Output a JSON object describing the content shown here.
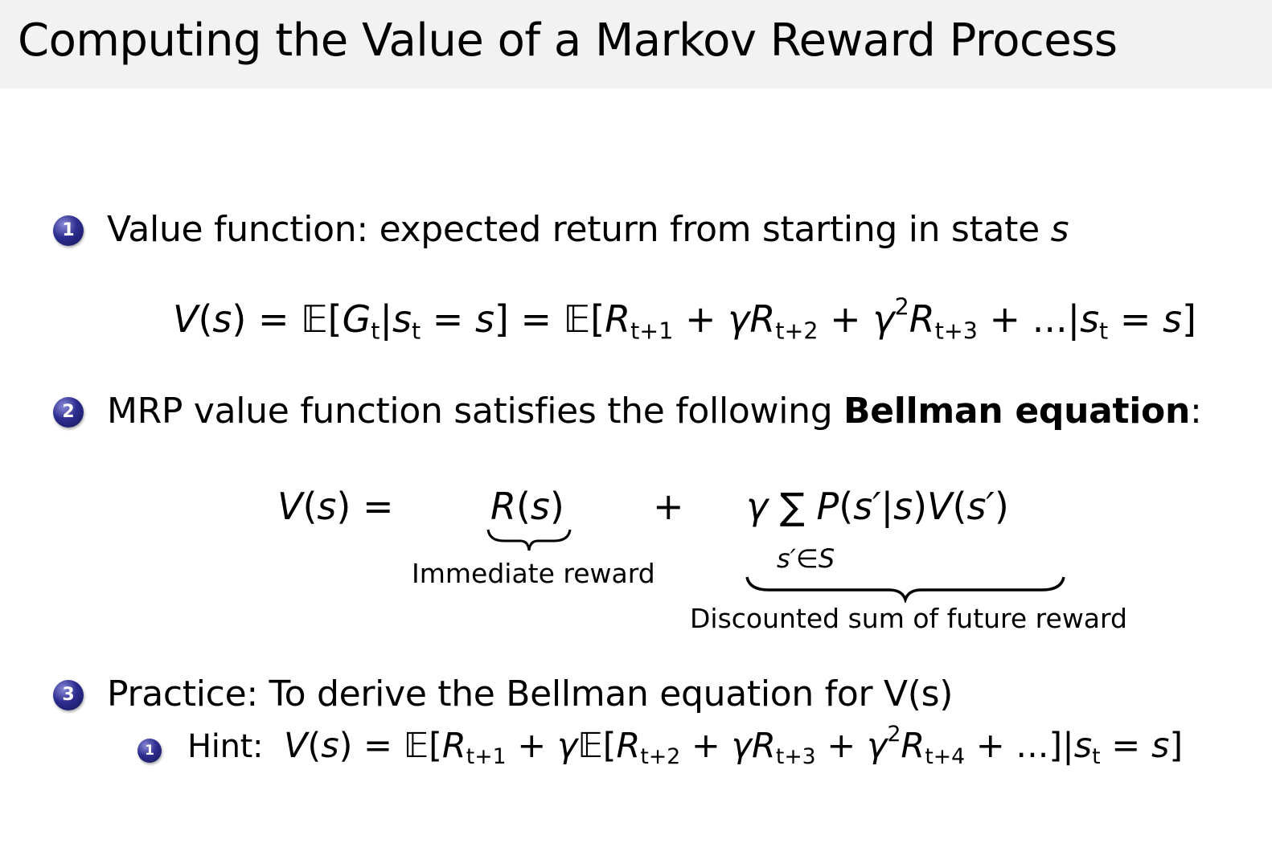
{
  "title": "Computing the Value of a Markov Reward Process",
  "accent_color": "#2d2d8f",
  "items": [
    {
      "number": "1",
      "text_parts": [
        "Value function: expected return from starting in state ",
        "s"
      ]
    },
    {
      "number": "2",
      "text_before": "MRP value function satisfies the following ",
      "text_bold": "Bellman equation",
      "text_after": ":"
    },
    {
      "number": "3",
      "text": "Practice: To derive the Bellman equation for V(s)",
      "sub_item": {
        "number": "1",
        "label": "Hint:"
      }
    }
  ],
  "equations": {
    "value_def": [
      [
        "i",
        "V"
      ],
      [
        "r",
        "("
      ],
      [
        "i",
        "s"
      ],
      [
        "r",
        ") = 𝔼["
      ],
      [
        "i",
        "G"
      ],
      [
        "sub",
        "t"
      ],
      [
        "r",
        "|"
      ],
      [
        "i",
        "s"
      ],
      [
        "sub",
        "t"
      ],
      [
        "r",
        " = "
      ],
      [
        "i",
        "s"
      ],
      [
        "r",
        "] = 𝔼["
      ],
      [
        "i",
        "R"
      ],
      [
        "sub",
        "t+1"
      ],
      [
        "r",
        " + "
      ],
      [
        "i",
        "γR"
      ],
      [
        "sub",
        "t+2"
      ],
      [
        "r",
        " + "
      ],
      [
        "i",
        "γ"
      ],
      [
        "sup",
        "2"
      ],
      [
        "i",
        "R"
      ],
      [
        "sub",
        "t+3"
      ],
      [
        "r",
        " + ...|"
      ],
      [
        "i",
        "s"
      ],
      [
        "sub",
        "t"
      ],
      [
        "r",
        " = "
      ],
      [
        "i",
        "s"
      ],
      [
        "r",
        "]"
      ]
    ],
    "bellman_lhs": [
      [
        "i",
        "V"
      ],
      [
        "r",
        "("
      ],
      [
        "i",
        "s"
      ],
      [
        "r",
        ") ="
      ]
    ],
    "bellman_reward": [
      [
        "i",
        "R"
      ],
      [
        "r",
        "("
      ],
      [
        "i",
        "s"
      ],
      [
        "r",
        ")"
      ]
    ],
    "bellman_plus": [
      [
        "r",
        "+"
      ]
    ],
    "bellman_future": [
      [
        "i",
        "γ"
      ],
      [
        "r",
        " ∑ "
      ],
      [
        "i",
        "P"
      ],
      [
        "r",
        "("
      ],
      [
        "i",
        "s′"
      ],
      [
        "r",
        "|"
      ],
      [
        "i",
        "s"
      ],
      [
        "r",
        ")"
      ],
      [
        "i",
        "V"
      ],
      [
        "r",
        "("
      ],
      [
        "i",
        "s′"
      ],
      [
        "r",
        ")"
      ]
    ],
    "sum_index": [
      [
        "i",
        "s′"
      ],
      [
        "r",
        "∈"
      ],
      [
        "i",
        "S"
      ]
    ],
    "hint": [
      [
        "i",
        "V"
      ],
      [
        "r",
        "("
      ],
      [
        "i",
        "s"
      ],
      [
        "r",
        ") = 𝔼["
      ],
      [
        "i",
        "R"
      ],
      [
        "sub",
        "t+1"
      ],
      [
        "r",
        " + "
      ],
      [
        "i",
        "γ"
      ],
      [
        "r",
        "𝔼["
      ],
      [
        "i",
        "R"
      ],
      [
        "sub",
        "t+2"
      ],
      [
        "r",
        " + "
      ],
      [
        "i",
        "γR"
      ],
      [
        "sub",
        "t+3"
      ],
      [
        "r",
        " + "
      ],
      [
        "i",
        "γ"
      ],
      [
        "sup",
        "2"
      ],
      [
        "i",
        "R"
      ],
      [
        "sub",
        "t+4"
      ],
      [
        "r",
        " + ...]|"
      ],
      [
        "i",
        "s"
      ],
      [
        "sub",
        "t"
      ],
      [
        "r",
        " = "
      ],
      [
        "i",
        "s"
      ],
      [
        "r",
        "]"
      ]
    ]
  },
  "labels": {
    "immediate_reward": "Immediate reward",
    "discounted_sum": "Discounted sum of future reward"
  }
}
